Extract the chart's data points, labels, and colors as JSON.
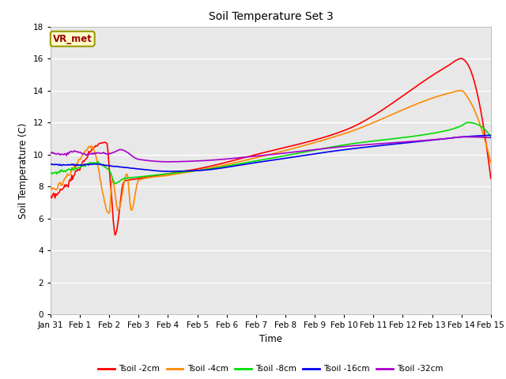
{
  "title": "Soil Temperature Set 3",
  "xlabel": "Time",
  "ylabel": "Soil Temperature (C)",
  "ylim": [
    0,
    18
  ],
  "yticks": [
    0,
    2,
    4,
    6,
    8,
    10,
    12,
    14,
    16,
    18
  ],
  "plot_bg": "#e8e8e8",
  "fig_bg": "#ffffff",
  "grid_color": "#ffffff",
  "annotation_text": "VR_met",
  "annotation_bg": "#ffffcc",
  "annotation_border": "#999900",
  "annotation_text_color": "#990000",
  "series_colors": {
    "Tsoil -2cm": "#ff0000",
    "Tsoil -4cm": "#ff8800",
    "Tsoil -8cm": "#00dd00",
    "Tsoil -16cm": "#0000ee",
    "Tsoil -32cm": "#aa00cc"
  },
  "linewidth": 1.2,
  "xtick_labels": [
    "Jan 31",
    "Feb 1",
    "Feb 2",
    "Feb 3",
    "Feb 4",
    "Feb 5",
    "Feb 6",
    "Feb 7",
    "Feb 8",
    "Feb 9",
    "Feb 10",
    "Feb 11",
    "Feb 12",
    "Feb 13",
    "Feb 14",
    "Feb 15"
  ]
}
